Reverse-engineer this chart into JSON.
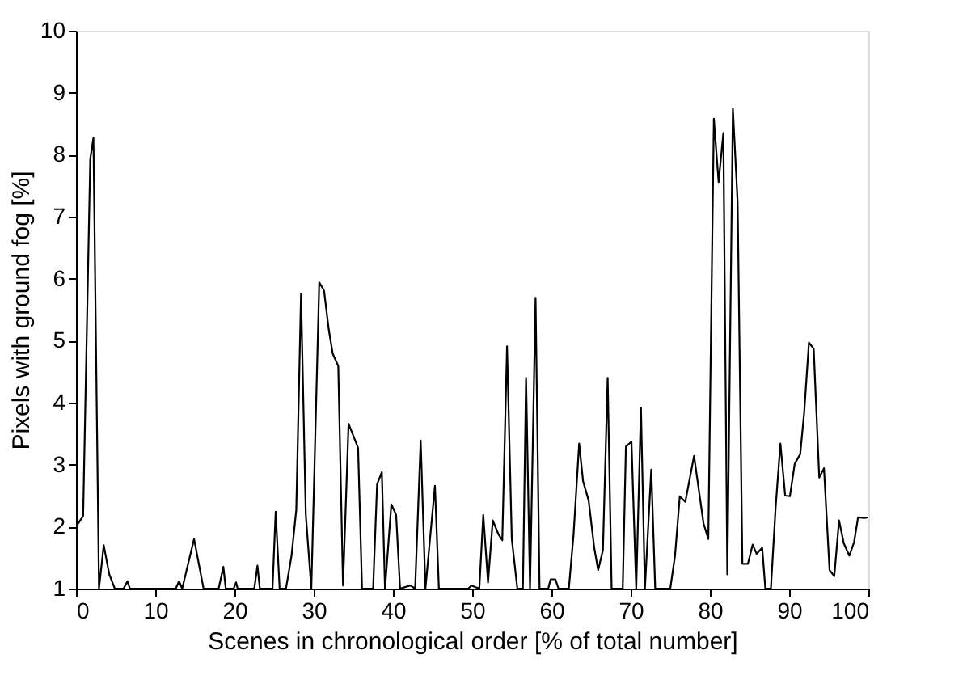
{
  "chart_data": {
    "type": "line",
    "xlabel": "Scenes in chronological order [% of total number]",
    "ylabel": "Pixels with ground fog [%]",
    "xlim": [
      0,
      100
    ],
    "xticks": [
      0,
      10,
      20,
      30,
      40,
      50,
      60,
      70,
      80,
      90,
      100
    ],
    "ylim": [
      1,
      10
    ],
    "yticks": [
      1,
      2,
      3,
      4,
      5,
      6,
      7,
      8,
      9,
      10
    ],
    "grid": false,
    "marker": "none",
    "line_style": "solid",
    "series": [
      {
        "color": "#000000",
        "x": [
          0,
          0.9,
          1.8,
          2.2,
          2.9,
          3.5,
          4.2,
          4.9,
          6.0,
          6.5,
          6.8,
          12.6,
          13.0,
          13.4,
          14.9,
          16.1,
          18.0,
          18.6,
          18.9,
          19.9,
          20.2,
          20.4,
          22.5,
          22.9,
          23.2,
          24.8,
          25.2,
          25.7,
          26.5,
          27.2,
          27.8,
          28.4,
          29.0,
          29.7,
          30.7,
          31.3,
          31.9,
          32.4,
          33.1,
          33.7,
          34.4,
          35.6,
          36.1,
          37.5,
          38.0,
          38.6,
          39.0,
          39.8,
          40.4,
          40.9,
          42.2,
          42.8,
          43.5,
          44.1,
          45.3,
          45.8,
          49.5,
          49.9,
          50.9,
          51.4,
          52.0,
          52.6,
          53.3,
          53.8,
          54.4,
          55.0,
          55.7,
          56.4,
          56.8,
          57.3,
          58.0,
          58.5,
          59.6,
          59.9,
          60.5,
          60.9,
          62.2,
          62.8,
          63.5,
          64.0,
          64.7,
          65.4,
          65.9,
          66.5,
          67.1,
          67.6,
          69.0,
          69.4,
          70.1,
          70.7,
          71.3,
          71.8,
          72.6,
          73.1,
          75.0,
          75.6,
          76.2,
          76.9,
          78.0,
          79.2,
          79.8,
          80.5,
          81.1,
          81.7,
          82.2,
          82.9,
          83.5,
          84.1,
          84.8,
          85.4,
          85.9,
          86.6,
          87.0,
          87.7,
          88.3,
          88.9,
          89.5,
          90.1,
          90.7,
          91.4,
          91.9,
          92.5,
          93.1,
          93.8,
          94.4,
          95.1,
          95.7,
          96.3,
          96.9,
          97.6,
          98.2,
          98.7,
          99.5,
          100
        ],
        "values": [
          2.0,
          2.17,
          7.93,
          8.27,
          1,
          1.7,
          1.23,
          1,
          1,
          1.12,
          1,
          1,
          1.12,
          1,
          1.8,
          1,
          1,
          1.35,
          1,
          1,
          1.1,
          1,
          1,
          1.37,
          1,
          1,
          2.24,
          1,
          1,
          1.53,
          2.27,
          5.75,
          2.2,
          1,
          5.94,
          5.81,
          5.18,
          4.79,
          4.59,
          1.05,
          3.66,
          3.27,
          1,
          1,
          2.68,
          2.88,
          1,
          2.36,
          2.19,
          1,
          1.05,
          1,
          3.39,
          1,
          2.66,
          1,
          1,
          1.05,
          1,
          2.19,
          1.1,
          2.1,
          1.88,
          1.78,
          4.91,
          1.8,
          1,
          1,
          4.4,
          1,
          5.69,
          1,
          1,
          1.15,
          1.15,
          1,
          1,
          1.88,
          3.34,
          2.73,
          2.42,
          1.66,
          1.3,
          1.62,
          4.4,
          1,
          1,
          3.29,
          3.37,
          1,
          3.92,
          1,
          2.92,
          1,
          1,
          1.53,
          2.49,
          2.4,
          3.14,
          2.05,
          1.8,
          8.58,
          7.56,
          8.35,
          1.23,
          8.74,
          7.23,
          1.4,
          1.4,
          1.71,
          1.56,
          1.66,
          1,
          1,
          2.32,
          3.34,
          2.5,
          2.49,
          3.01,
          3.17,
          3.84,
          4.97,
          4.87,
          2.79,
          2.94,
          1.3,
          1.2,
          2.1,
          1.73,
          1.53,
          1.75,
          2.15,
          2.14,
          2.15
        ]
      }
    ]
  }
}
